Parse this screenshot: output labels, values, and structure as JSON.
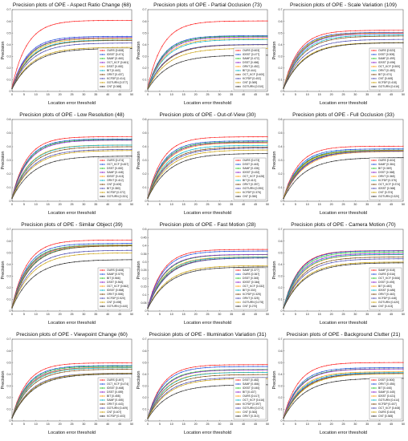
{
  "figure": {
    "xlabel": "Location error threshold",
    "ylabel": "Precision",
    "xticks": [
      0,
      5,
      10,
      15,
      20,
      25,
      30,
      35,
      40,
      45,
      50
    ],
    "xlim": [
      0,
      50
    ]
  },
  "colors": [
    "#ff2222",
    "#1f4fd8",
    "#29c229",
    "#8b21c9",
    "#ff9f19",
    "#0bb6c9",
    "#7a4a10",
    "#4b4bb0",
    "#c8a010",
    "#2f2f2f",
    "#e0207a",
    "#55b0ff"
  ],
  "chart_data": [
    {
      "type": "line",
      "title": "Precision plots of OPE - Aspect Ratio Change (68)",
      "xlabel": "Location error threshold",
      "ylabel": "Precision",
      "ylim": [
        0,
        0.7
      ],
      "yticks": [
        0,
        0.1,
        0.2,
        0.3,
        0.4,
        0.5,
        0.6,
        0.7
      ],
      "legend": "bottom-right",
      "series": [
        {
          "name": "OURS [0.608]",
          "value": 0.608
        },
        {
          "name": "IDSST [0.471]",
          "value": 0.471
        },
        {
          "name": "SAMF [0.460]",
          "value": 0.46
        },
        {
          "name": "OCT_KCF [0.461]",
          "value": 0.461
        },
        {
          "name": "DSST [0.452]",
          "value": 0.452
        },
        {
          "name": "BIT [0.440]",
          "value": 0.44
        },
        {
          "name": "ORVT [0.437]",
          "value": 0.437
        },
        {
          "name": "KCFDP [0.414]",
          "value": 0.414
        },
        {
          "name": "GOTURN [0.377]",
          "value": 0.377
        },
        {
          "name": "CNT [0.368]",
          "value": 0.368
        }
      ]
    },
    {
      "type": "line",
      "title": "Precision plots of OPE - Partial Occlusion (73)",
      "xlabel": "Location error threshold",
      "ylabel": "Precision",
      "ylim": [
        0,
        0.7
      ],
      "yticks": [
        0,
        0.1,
        0.2,
        0.3,
        0.4,
        0.5,
        0.6,
        0.7
      ],
      "legend": "bottom-right",
      "series": [
        {
          "name": "OURS [0.603]",
          "value": 0.603
        },
        {
          "name": "IDSST [0.477]",
          "value": 0.477
        },
        {
          "name": "SAMF [0.472]",
          "value": 0.472
        },
        {
          "name": "DSST [0.466]",
          "value": 0.466
        },
        {
          "name": "ORVT [0.452]",
          "value": 0.452
        },
        {
          "name": "BIT [0.444]",
          "value": 0.444
        },
        {
          "name": "OCT_KCF [0.400]",
          "value": 0.4
        },
        {
          "name": "KCFDP [0.402]",
          "value": 0.402
        },
        {
          "name": "CNT [0.369]",
          "value": 0.369
        },
        {
          "name": "GOTURN [0.310]",
          "value": 0.31
        }
      ]
    },
    {
      "type": "line",
      "title": "Precision plots of OPE - Scale Variation (109)",
      "xlabel": "Location error threshold",
      "ylabel": "Precision",
      "ylim": [
        0,
        0.7
      ],
      "yticks": [
        0,
        0.1,
        0.2,
        0.3,
        0.4,
        0.5,
        0.6,
        0.7
      ],
      "legend": "bottom-right",
      "series": [
        {
          "name": "OURS [0.523]",
          "value": 0.523
        },
        {
          "name": "DSST [0.505]",
          "value": 0.505
        },
        {
          "name": "SAMF [0.499]",
          "value": 0.499
        },
        {
          "name": "IDSST [0.496]",
          "value": 0.496
        },
        {
          "name": "OCT_KCF [0.500]",
          "value": 0.5
        },
        {
          "name": "ORVT [0.483]",
          "value": 0.483
        },
        {
          "name": "BIT [0.474]",
          "value": 0.474
        },
        {
          "name": "CNT [0.445]",
          "value": 0.445
        },
        {
          "name": "KCFDP [0.418]",
          "value": 0.418
        },
        {
          "name": "GOTURN [0.416]",
          "value": 0.416
        }
      ]
    },
    {
      "type": "line",
      "title": "Precision plots of OPE - Low Resolution (48)",
      "xlabel": "Location error threshold",
      "ylabel": "Precision",
      "ylim": [
        0,
        0.6
      ],
      "yticks": [
        0,
        0.1,
        0.2,
        0.3,
        0.4,
        0.5,
        0.6
      ],
      "legend": "bottom-right",
      "series": [
        {
          "name": "OURS [0.474]",
          "value": 0.474
        },
        {
          "name": "OCT_KCF [0.457]",
          "value": 0.457
        },
        {
          "name": "DSST [0.452]",
          "value": 0.452
        },
        {
          "name": "SAMF [0.448]",
          "value": 0.448
        },
        {
          "name": "IDSST [0.413]",
          "value": 0.413
        },
        {
          "name": "ORVT [0.412]",
          "value": 0.412
        },
        {
          "name": "CNT [0.400]",
          "value": 0.4
        },
        {
          "name": "BIT [0.380]",
          "value": 0.38
        },
        {
          "name": "KCFDP [0.372]",
          "value": 0.372
        },
        {
          "name": "GOTURN [0.331]",
          "value": 0.331
        }
      ]
    },
    {
      "type": "line",
      "title": "Precision plots of OPE - Out-of-View (30)",
      "xlabel": "Location error threshold",
      "ylabel": "Precision",
      "ylim": [
        0,
        0.6
      ],
      "yticks": [
        0,
        0.1,
        0.2,
        0.3,
        0.4,
        0.5,
        0.6
      ],
      "legend": "bottom-right",
      "series": [
        {
          "name": "OURS [0.473]",
          "value": 0.473
        },
        {
          "name": "DSST [0.443]",
          "value": 0.443
        },
        {
          "name": "SAMF [0.436]",
          "value": 0.436
        },
        {
          "name": "IDSST [0.432]",
          "value": 0.432
        },
        {
          "name": "OCT_KCF [0.428]",
          "value": 0.428
        },
        {
          "name": "BIT [0.410]",
          "value": 0.41
        },
        {
          "name": "ORVT [0.397]",
          "value": 0.397
        },
        {
          "name": "GOTURN [0.390]",
          "value": 0.39
        },
        {
          "name": "KCFDP [0.376]",
          "value": 0.376
        },
        {
          "name": "CNT [0.350]",
          "value": 0.35
        }
      ]
    },
    {
      "type": "line",
      "title": "Precision plots of OPE - Full Occlusion (33)",
      "xlabel": "Location error threshold",
      "ylabel": "Precision",
      "ylim": [
        0,
        0.6
      ],
      "yticks": [
        0,
        0.1,
        0.2,
        0.3,
        0.4,
        0.5,
        0.6
      ],
      "legend": "bottom-right",
      "series": [
        {
          "name": "OURS [0.404]",
          "value": 0.404
        },
        {
          "name": "SAMF [0.384]",
          "value": 0.384
        },
        {
          "name": "BIT [0.369]",
          "value": 0.369
        },
        {
          "name": "DSST [0.368]",
          "value": 0.368
        },
        {
          "name": "ORVT [0.365]",
          "value": 0.365
        },
        {
          "name": "KCFDP [0.376]",
          "value": 0.376
        },
        {
          "name": "OCT_KCF [0.374]",
          "value": 0.374
        },
        {
          "name": "IDSST [0.368]",
          "value": 0.368
        },
        {
          "name": "CNT [0.374]",
          "value": 0.374
        },
        {
          "name": "GOTURN [0.320]",
          "value": 0.32
        }
      ]
    },
    {
      "type": "line",
      "title": "Precision plots of OPE - Similar Object (39)",
      "xlabel": "Location error threshold",
      "ylabel": "Precision",
      "ylim": [
        0,
        0.7
      ],
      "yticks": [
        0,
        0.1,
        0.2,
        0.3,
        0.4,
        0.5,
        0.6,
        0.7
      ],
      "legend": "bottom-right",
      "series": [
        {
          "name": "OURS [0.608]",
          "value": 0.608
        },
        {
          "name": "SAMF [0.579]",
          "value": 0.579
        },
        {
          "name": "BIT [0.566]",
          "value": 0.566
        },
        {
          "name": "DSST [0.563]",
          "value": 0.563
        },
        {
          "name": "OCT_KCF [0.562]",
          "value": 0.562
        },
        {
          "name": "IDSST [0.558]",
          "value": 0.558
        },
        {
          "name": "ORVT [0.558]",
          "value": 0.558
        },
        {
          "name": "KCFDP [0.520]",
          "value": 0.52
        },
        {
          "name": "CNT [0.498]",
          "value": 0.498
        },
        {
          "name": "GOTURN [0.440]",
          "value": 0.44
        }
      ]
    },
    {
      "type": "line",
      "title": "Precision plots of OPE - Fast Motion (28)",
      "xlabel": "Location error threshold",
      "ylabel": "Precision",
      "ylim": [
        0,
        0.5
      ],
      "yticks": [
        0,
        0.05,
        0.1,
        0.15,
        0.2,
        0.25,
        0.3,
        0.35,
        0.4,
        0.45,
        0.5
      ],
      "legend": "bottom-right",
      "series": [
        {
          "name": "SAMF [0.377]",
          "value": 0.377
        },
        {
          "name": "OURS [0.367]",
          "value": 0.367
        },
        {
          "name": "DSST [0.345]",
          "value": 0.345
        },
        {
          "name": "IDSST [0.346]",
          "value": 0.346
        },
        {
          "name": "OCT_KCF [0.332]",
          "value": 0.332
        },
        {
          "name": "BIT [0.330]",
          "value": 0.33
        },
        {
          "name": "KCFDP [0.325]",
          "value": 0.325
        },
        {
          "name": "ORVT [0.325]",
          "value": 0.325
        },
        {
          "name": "GOTURN [0.278]",
          "value": 0.278
        },
        {
          "name": "CNT [0.270]",
          "value": 0.27
        }
      ]
    },
    {
      "type": "line",
      "title": "Precision plots of OPE - Camera Motion (70)",
      "xlabel": "Location error threshold",
      "ylabel": "Precision",
      "ylim": [
        0,
        0.7
      ],
      "yticks": [
        0,
        0.1,
        0.2,
        0.3,
        0.4,
        0.5,
        0.6,
        0.7
      ],
      "legend": "bottom-right",
      "series": [
        {
          "name": "SAMF [0.518]",
          "value": 0.518
        },
        {
          "name": "OURS [0.516]",
          "value": 0.516
        },
        {
          "name": "OCT_KCF [0.506]",
          "value": 0.506
        },
        {
          "name": "DSST [0.493]",
          "value": 0.493
        },
        {
          "name": "BIT [0.483]",
          "value": 0.483
        },
        {
          "name": "IDSST [0.485]",
          "value": 0.485
        },
        {
          "name": "ORVT [0.463]",
          "value": 0.463
        },
        {
          "name": "KCFDP [0.448]",
          "value": 0.448
        },
        {
          "name": "GOTURN [0.420]",
          "value": 0.42
        },
        {
          "name": "CNT [0.413]",
          "value": 0.413
        }
      ]
    },
    {
      "type": "line",
      "title": "Precision plots of OPE - Viewpoint Change (60)",
      "xlabel": "Location error threshold",
      "ylabel": "Precision",
      "ylim": [
        0,
        0.7
      ],
      "yticks": [
        0,
        0.1,
        0.2,
        0.3,
        0.4,
        0.5,
        0.6,
        0.7
      ],
      "legend": "bottom-right",
      "series": [
        {
          "name": "OURS [0.497]",
          "value": 0.497
        },
        {
          "name": "OCT_KCF [0.474]",
          "value": 0.474
        },
        {
          "name": "IDSST [0.468]",
          "value": 0.468
        },
        {
          "name": "DSST [0.459]",
          "value": 0.459
        },
        {
          "name": "BIT [0.458]",
          "value": 0.458
        },
        {
          "name": "SAMF [0.455]",
          "value": 0.455
        },
        {
          "name": "ORVT [0.443]",
          "value": 0.443
        },
        {
          "name": "GOTURN [0.409]",
          "value": 0.409
        },
        {
          "name": "CNT [0.407]",
          "value": 0.407
        },
        {
          "name": "KCFDP [0.403]",
          "value": 0.403
        }
      ]
    },
    {
      "type": "line",
      "title": "Precision plots of OPE - Illumination Variation (31)",
      "xlabel": "Location error threshold",
      "ylabel": "Precision",
      "ylim": [
        0,
        0.7
      ],
      "yticks": [
        0,
        0.1,
        0.2,
        0.3,
        0.4,
        0.5,
        0.6,
        0.7
      ],
      "legend": "bottom-right",
      "series": [
        {
          "name": "DSST [0.482]",
          "value": 0.482
        },
        {
          "name": "SAMF [0.466]",
          "value": 0.466
        },
        {
          "name": "IDSST [0.440]",
          "value": 0.44
        },
        {
          "name": "BIT [0.437]",
          "value": 0.437
        },
        {
          "name": "OURS [0.417]",
          "value": 0.417
        },
        {
          "name": "OCT_KCF [0.416]",
          "value": 0.416
        },
        {
          "name": "KCFDP [0.397]",
          "value": 0.397
        },
        {
          "name": "GOTURN [0.372]",
          "value": 0.372
        },
        {
          "name": "CNT [0.363]",
          "value": 0.363
        },
        {
          "name": "ORVT [0.310]",
          "value": 0.31
        }
      ]
    },
    {
      "type": "line",
      "title": "Precision plots of OPE - Background Clutter (21)",
      "xlabel": "Location error threshold",
      "ylabel": "Precision",
      "ylim": [
        0,
        0.7
      ],
      "yticks": [
        0,
        0.1,
        0.2,
        0.3,
        0.4,
        0.5,
        0.6,
        0.7
      ],
      "legend": "bottom-right",
      "series": [
        {
          "name": "DSST [0.500]",
          "value": 0.5
        },
        {
          "name": "ORVT [0.456]",
          "value": 0.456
        },
        {
          "name": "BIT [0.446]",
          "value": 0.446
        },
        {
          "name": "SAMF [0.445]",
          "value": 0.445
        },
        {
          "name": "IDSST [0.421]",
          "value": 0.421
        },
        {
          "name": "GOTURN [0.414]",
          "value": 0.414
        },
        {
          "name": "KCFDP [0.407]",
          "value": 0.407
        },
        {
          "name": "OCT_KCF [0.408]",
          "value": 0.408
        },
        {
          "name": "OURS [0.404]",
          "value": 0.404
        },
        {
          "name": "CNT [0.365]",
          "value": 0.365
        }
      ]
    }
  ]
}
